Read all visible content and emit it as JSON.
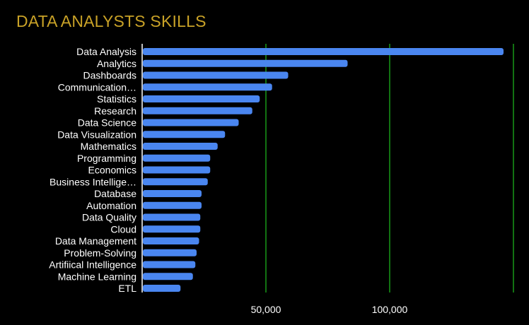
{
  "chart_data": {
    "type": "bar",
    "orientation": "horizontal",
    "title": "DATA ANALYSTS SKILLS",
    "xlabel": "",
    "ylabel": "",
    "categories": [
      "Data Analysis",
      "Analytics",
      "Dashboards",
      "Communication…",
      "Statistics",
      "Research",
      "Data Science",
      "Data Visualization",
      "Mathematics",
      "Programming",
      "Economics",
      "Business Intellige…",
      "Database",
      "Automation",
      "Data Quality",
      "Cloud",
      "Data Management",
      "Problem-Solving",
      "Artifiical Intelligence",
      "Machine Learning",
      "ETL"
    ],
    "values": [
      146000,
      83000,
      59000,
      52500,
      47500,
      44500,
      39000,
      33500,
      30500,
      27500,
      27500,
      26500,
      24000,
      24000,
      23500,
      23500,
      23000,
      22000,
      21500,
      20500,
      15500
    ],
    "xlim": [
      0,
      150000
    ],
    "xticks": [
      50000,
      100000,
      150000
    ],
    "xtick_labels": [
      "50,000",
      "100,000",
      ""
    ],
    "grid": "vertical",
    "legend": "none",
    "colors": {
      "background": "#000000",
      "title": "#c9a227",
      "bar": "#4a86f0",
      "grid": "#1fbf1f",
      "axis": "#ffffff",
      "label": "#ffffff"
    }
  }
}
